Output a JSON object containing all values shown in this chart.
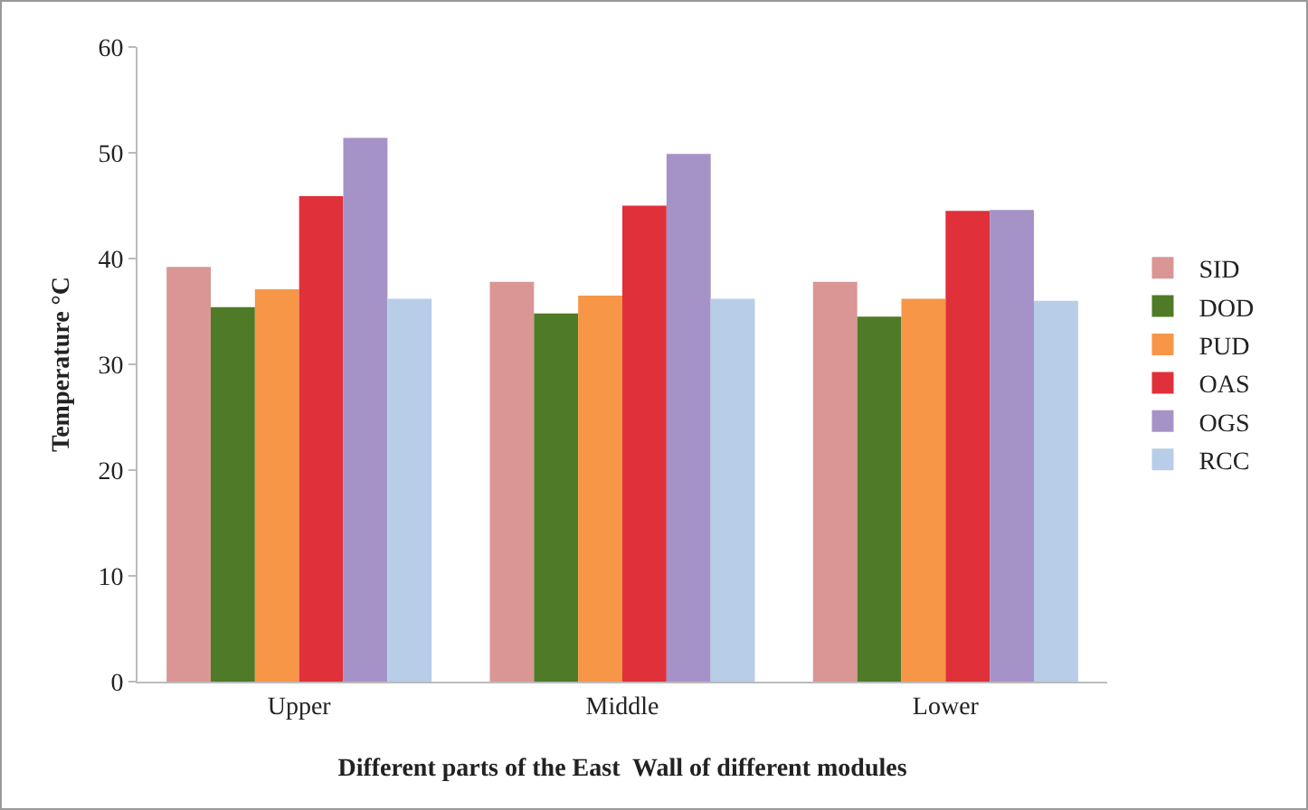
{
  "chart_data": {
    "type": "bar",
    "xlabel": "Different parts of the East  Wall of different modules",
    "ylabel": "Temperature °C",
    "categories": [
      "Upper",
      "Middle",
      "Lower"
    ],
    "series": [
      {
        "name": "SID",
        "color": "#d99694",
        "values": [
          39.2,
          37.8,
          37.8
        ]
      },
      {
        "name": "DOD",
        "color": "#4f7a28",
        "values": [
          35.4,
          34.8,
          34.5
        ]
      },
      {
        "name": "PUD",
        "color": "#f79646",
        "values": [
          37.1,
          36.5,
          36.2
        ]
      },
      {
        "name": "OAS",
        "color": "#e0303a",
        "values": [
          45.9,
          45.0,
          44.5
        ]
      },
      {
        "name": "OGS",
        "color": "#a593c8",
        "values": [
          51.4,
          49.9,
          44.6
        ]
      },
      {
        "name": "RCC",
        "color": "#b7cde8",
        "values": [
          36.2,
          36.2,
          36.0
        ]
      }
    ],
    "ylim": [
      0,
      60
    ],
    "yticks": [
      0,
      10,
      20,
      30,
      40,
      50,
      60
    ],
    "grid": false,
    "legend": "right"
  }
}
